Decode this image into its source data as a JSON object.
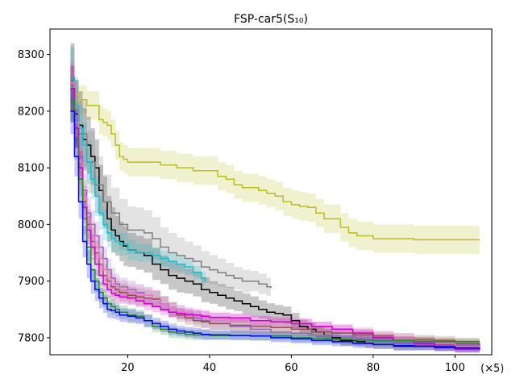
{
  "chart_data": {
    "type": "line",
    "title": "FSP-car5(S₁₀)",
    "x_multiplier_label": "(×5)",
    "xlim": [
      1,
      109
    ],
    "ylim": [
      7770,
      8345
    ],
    "x_ticks": [
      20,
      40,
      60,
      80,
      100
    ],
    "y_ticks": [
      7800,
      7900,
      8000,
      8100,
      8200,
      8300
    ],
    "grid": false,
    "legend": "none",
    "series": [
      {
        "color": "#bcbd22",
        "x": [
          6,
          7,
          8,
          10,
          12,
          13,
          14,
          15,
          16,
          17,
          18,
          19,
          20,
          22,
          24,
          26,
          28,
          30,
          32,
          34,
          36,
          38,
          40,
          42,
          44,
          46,
          48,
          50,
          52,
          54,
          56,
          58,
          60,
          62,
          64,
          66,
          68,
          70,
          72,
          74,
          76,
          78,
          80,
          85,
          90,
          95,
          100,
          106
        ],
        "y": [
          8260,
          8230,
          8220,
          8210,
          8210,
          8185,
          8180,
          8175,
          8160,
          8140,
          8120,
          8115,
          8110,
          8110,
          8110,
          8110,
          8105,
          8105,
          8100,
          8100,
          8095,
          8095,
          8095,
          8085,
          8080,
          8070,
          8065,
          8065,
          8060,
          8055,
          8050,
          8040,
          8035,
          8032,
          8030,
          8020,
          8010,
          8010,
          7995,
          7985,
          7980,
          7980,
          7975,
          7975,
          7973,
          7973,
          7973,
          7973
        ],
        "band": [
          25,
          25,
          25,
          25,
          25,
          25,
          25,
          25,
          25,
          25,
          25,
          25,
          25,
          25,
          25,
          25,
          25,
          25,
          25,
          25,
          25,
          25,
          25,
          25,
          25,
          25,
          25,
          25,
          25,
          25,
          25,
          25,
          25,
          25,
          25,
          25,
          25,
          25,
          25,
          25,
          25,
          25,
          25,
          25,
          25,
          25,
          25,
          25
        ]
      },
      {
        "color": "#000000",
        "x": [
          6,
          7,
          8,
          9,
          10,
          11,
          12,
          13,
          14,
          15,
          16,
          17,
          18,
          19,
          20,
          22,
          24,
          26,
          28,
          30,
          32,
          34,
          36,
          38,
          40,
          42,
          44,
          46,
          48,
          50,
          52,
          54,
          56,
          58,
          60,
          62,
          64,
          66,
          68,
          70,
          72,
          74,
          76,
          78,
          80,
          85,
          90,
          95,
          100,
          106
        ],
        "y": [
          8250,
          8195,
          8175,
          8150,
          8140,
          8120,
          8100,
          8060,
          8040,
          8010,
          7990,
          7980,
          7970,
          7962,
          7955,
          7950,
          7945,
          7930,
          7920,
          7910,
          7905,
          7900,
          7895,
          7885,
          7880,
          7875,
          7870,
          7865,
          7860,
          7855,
          7850,
          7845,
          7843,
          7840,
          7830,
          7820,
          7815,
          7810,
          7805,
          7800,
          7795,
          7795,
          7793,
          7790,
          7788,
          7785,
          7785,
          7783,
          7782,
          7780
        ],
        "band": [
          70,
          60,
          60,
          55,
          50,
          50,
          50,
          45,
          45,
          40,
          40,
          35,
          35,
          35,
          30,
          30,
          30,
          28,
          25,
          25,
          25,
          22,
          22,
          22,
          20,
          20,
          20,
          18,
          18,
          18,
          16,
          16,
          15,
          15,
          14,
          12,
          12,
          10,
          10,
          10,
          9,
          9,
          8,
          8,
          8,
          8,
          7,
          7,
          7,
          7
        ]
      },
      {
        "color": "#7f7f7f",
        "x": [
          6,
          7,
          8,
          10,
          12,
          14,
          16,
          18,
          20,
          22,
          24,
          26,
          28,
          30,
          32,
          34,
          36,
          38,
          40,
          42,
          44,
          46,
          48,
          50,
          52,
          54,
          55
        ],
        "y": [
          8250,
          8200,
          8160,
          8110,
          8070,
          8040,
          8020,
          8000,
          7990,
          7990,
          7985,
          7975,
          7960,
          7950,
          7945,
          7940,
          7935,
          7925,
          7920,
          7915,
          7910,
          7905,
          7900,
          7900,
          7895,
          7890,
          7888
        ],
        "band": [
          65,
          60,
          58,
          55,
          50,
          48,
          45,
          45,
          42,
          40,
          40,
          38,
          35,
          35,
          32,
          30,
          28,
          28,
          26,
          25,
          22,
          20,
          20,
          18,
          18,
          16,
          15
        ]
      },
      {
        "color": "#17becf",
        "x": [
          6,
          7,
          8,
          9,
          10,
          11,
          12,
          13,
          14,
          15,
          16,
          17,
          18,
          20,
          22,
          24,
          26,
          28,
          30,
          32,
          34,
          36,
          38,
          39
        ],
        "y": [
          8260,
          8210,
          8170,
          8140,
          8110,
          8080,
          8050,
          8020,
          8000,
          7985,
          7975,
          7970,
          7965,
          7955,
          7950,
          7950,
          7945,
          7940,
          7935,
          7930,
          7925,
          7915,
          7905,
          7900
        ],
        "band": [
          50,
          45,
          40,
          40,
          38,
          35,
          35,
          30,
          28,
          25,
          22,
          20,
          20,
          18,
          16,
          15,
          15,
          14,
          14,
          13,
          12,
          12,
          12,
          12
        ]
      },
      {
        "color": "#9467bd",
        "x": [
          6,
          7,
          8,
          9,
          10,
          11,
          12,
          13,
          14,
          15,
          16,
          17,
          18,
          20,
          22,
          24,
          26,
          28,
          30,
          32,
          34,
          36,
          38,
          40,
          45,
          50,
          55,
          60,
          65,
          70,
          75,
          80,
          85,
          90,
          95,
          100,
          106
        ],
        "y": [
          8240,
          8180,
          8120,
          8060,
          8020,
          8000,
          7980,
          7960,
          7940,
          7920,
          7905,
          7895,
          7890,
          7885,
          7880,
          7875,
          7870,
          7860,
          7850,
          7845,
          7840,
          7835,
          7830,
          7825,
          7820,
          7815,
          7810,
          7808,
          7805,
          7803,
          7800,
          7798,
          7795,
          7793,
          7790,
          7788,
          7785
        ],
        "band": [
          40,
          35,
          35,
          30,
          28,
          25,
          25,
          22,
          20,
          20,
          18,
          18,
          16,
          16,
          15,
          15,
          14,
          14,
          13,
          13,
          12,
          12,
          12,
          11,
          11,
          10,
          10,
          10,
          9,
          9,
          9,
          8,
          8,
          8,
          8,
          8,
          8
        ]
      },
      {
        "color": "#8c564b",
        "x": [
          6,
          7,
          8,
          9,
          10,
          11,
          12,
          13,
          14,
          15,
          16,
          17,
          18,
          20,
          22,
          24,
          26,
          28,
          30,
          32,
          34,
          36,
          38,
          40,
          45,
          50,
          55,
          60,
          65,
          70,
          75,
          80,
          85,
          90,
          95,
          100,
          106
        ],
        "y": [
          8240,
          8170,
          8100,
          8040,
          8000,
          7970,
          7950,
          7930,
          7910,
          7900,
          7890,
          7885,
          7880,
          7875,
          7872,
          7870,
          7868,
          7860,
          7850,
          7840,
          7835,
          7830,
          7828,
          7825,
          7822,
          7820,
          7818,
          7815,
          7810,
          7808,
          7805,
          7803,
          7800,
          7797,
          7795,
          7790,
          7785
        ],
        "band": [
          40,
          35,
          30,
          28,
          25,
          25,
          22,
          20,
          20,
          18,
          18,
          16,
          16,
          15,
          15,
          14,
          14,
          13,
          13,
          12,
          12,
          12,
          11,
          11,
          10,
          10,
          10,
          10,
          9,
          9,
          9,
          8,
          8,
          8,
          8,
          8,
          8
        ]
      },
      {
        "color": "#e377c2",
        "x": [
          6,
          7,
          8,
          9,
          10,
          11,
          12,
          13,
          14,
          15,
          16,
          17,
          18,
          20,
          22,
          24,
          26,
          28,
          30,
          32,
          34,
          36,
          38,
          40,
          45,
          50,
          55,
          60,
          65,
          70,
          75,
          80,
          85,
          90,
          95,
          100,
          106
        ],
        "y": [
          8250,
          8180,
          8110,
          8050,
          8010,
          7980,
          7960,
          7940,
          7920,
          7905,
          7895,
          7890,
          7885,
          7880,
          7878,
          7875,
          7870,
          7860,
          7850,
          7845,
          7842,
          7840,
          7838,
          7835,
          7832,
          7830,
          7828,
          7825,
          7820,
          7815,
          7810,
          7805,
          7800,
          7795,
          7790,
          7785,
          7780
        ],
        "band": [
          40,
          35,
          30,
          28,
          25,
          25,
          22,
          20,
          20,
          18,
          18,
          16,
          16,
          15,
          15,
          14,
          14,
          13,
          13,
          12,
          12,
          12,
          11,
          11,
          10,
          10,
          10,
          10,
          9,
          9,
          9,
          8,
          8,
          8,
          8,
          8,
          8
        ]
      },
      {
        "color": "#cc00cc",
        "x": [
          6,
          7,
          8,
          9,
          10,
          11,
          12,
          13,
          14,
          15,
          16,
          17,
          18,
          20,
          22,
          24,
          26,
          28,
          30,
          32,
          34,
          36,
          38,
          40,
          45,
          50,
          55,
          60,
          65,
          70,
          75,
          80,
          85,
          90,
          95,
          100,
          106
        ],
        "y": [
          8240,
          8170,
          8100,
          8030,
          7990,
          7960,
          7930,
          7910,
          7895,
          7885,
          7878,
          7875,
          7872,
          7870,
          7865,
          7860,
          7855,
          7850,
          7845,
          7843,
          7841,
          7840,
          7838,
          7836,
          7835,
          7830,
          7828,
          7825,
          7820,
          7815,
          7808,
          7800,
          7795,
          7790,
          7785,
          7780,
          7778
        ],
        "band": [
          40,
          35,
          30,
          28,
          25,
          22,
          20,
          18,
          16,
          15,
          14,
          13,
          12,
          12,
          11,
          11,
          10,
          10,
          10,
          9,
          9,
          9,
          9,
          8,
          8,
          8,
          8,
          8,
          8,
          8,
          8,
          7,
          7,
          7,
          7,
          7,
          7
        ]
      },
      {
        "color": "#228b22",
        "x": [
          6,
          7,
          8,
          9,
          10,
          11,
          12,
          13,
          14,
          15,
          16,
          17,
          18,
          20,
          22,
          24,
          26,
          28,
          30,
          32,
          34,
          36,
          38,
          40,
          45,
          50,
          55,
          60,
          65,
          70,
          75,
          80,
          85,
          90,
          95,
          100,
          106
        ],
        "y": [
          8220,
          8150,
          8080,
          8010,
          7960,
          7920,
          7900,
          7880,
          7870,
          7860,
          7855,
          7850,
          7845,
          7840,
          7838,
          7830,
          7820,
          7815,
          7810,
          7808,
          7806,
          7805,
          7805,
          7804,
          7804,
          7803,
          7803,
          7800,
          7798,
          7797,
          7796,
          7795,
          7795,
          7794,
          7793,
          7793,
          7793
        ],
        "band": [
          40,
          35,
          30,
          28,
          25,
          22,
          20,
          18,
          16,
          15,
          14,
          13,
          12,
          12,
          11,
          11,
          10,
          10,
          10,
          9,
          9,
          9,
          9,
          8,
          8,
          8,
          8,
          8,
          8,
          8,
          8,
          7,
          7,
          7,
          7,
          7,
          7
        ]
      },
      {
        "color": "#0000ff",
        "x": [
          6,
          7,
          8,
          9,
          10,
          11,
          12,
          13,
          14,
          15,
          16,
          17,
          18,
          20,
          22,
          24,
          26,
          28,
          30,
          32,
          34,
          36,
          38,
          40,
          45,
          50,
          55,
          60,
          65,
          70,
          75,
          80,
          85,
          90,
          95,
          100,
          106
        ],
        "y": [
          8200,
          8120,
          8040,
          7970,
          7930,
          7900,
          7885,
          7870,
          7860,
          7850,
          7848,
          7845,
          7840,
          7838,
          7835,
          7830,
          7825,
          7820,
          7815,
          7812,
          7810,
          7808,
          7806,
          7805,
          7804,
          7803,
          7800,
          7798,
          7795,
          7793,
          7790,
          7788,
          7786,
          7785,
          7784,
          7782,
          7780
        ],
        "band": [
          40,
          35,
          30,
          28,
          25,
          22,
          20,
          18,
          16,
          15,
          14,
          13,
          12,
          12,
          11,
          11,
          10,
          10,
          10,
          9,
          9,
          9,
          9,
          8,
          8,
          8,
          8,
          8,
          8,
          8,
          8,
          7,
          7,
          7,
          7,
          7,
          7
        ]
      }
    ]
  }
}
